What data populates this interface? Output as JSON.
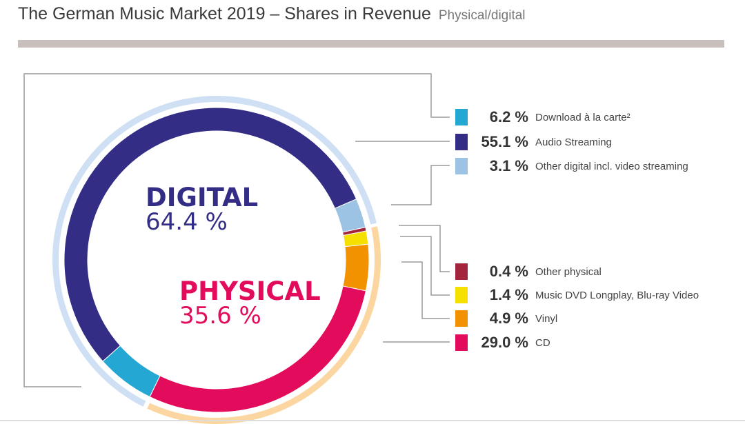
{
  "chart_data": {
    "type": "pie",
    "variant": "donut",
    "title": "The German Music Market 2019 – Shares in Revenue",
    "subtitle": "Physical/digital",
    "groups": [
      {
        "name": "DIGITAL",
        "value_label": "64.4 %",
        "value": 64.4,
        "color": "#332d85",
        "ring_color": "#cfe0f4"
      },
      {
        "name": "PHYSICAL",
        "value_label": "35.6 %",
        "value": 35.6,
        "color": "#e30b5c",
        "ring_color": "#fbd6a0"
      }
    ],
    "slices": [
      {
        "label": "Download à la carte²",
        "value": 6.2,
        "value_label": "6.2 %",
        "group": "DIGITAL",
        "color": "#25a7d3"
      },
      {
        "label": "Audio Streaming",
        "value": 55.1,
        "value_label": "55.1 %",
        "group": "DIGITAL",
        "color": "#332d85"
      },
      {
        "label": "Other digital incl. video streaming",
        "value": 3.1,
        "value_label": "3.1 %",
        "group": "DIGITAL",
        "color": "#9cc3e4"
      },
      {
        "label": "Other physical",
        "value": 0.4,
        "value_label": "0.4 %",
        "group": "PHYSICAL",
        "color": "#a3243d"
      },
      {
        "label": "Music DVD Longplay, Blu-ray Video",
        "value": 1.4,
        "value_label": "1.4 %",
        "group": "PHYSICAL",
        "color": "#f5e000"
      },
      {
        "label": "Vinyl",
        "value": 4.9,
        "value_label": "4.9 %",
        "group": "PHYSICAL",
        "color": "#f39200"
      },
      {
        "label": "CD",
        "value": 29.0,
        "value_label": "29.0 %",
        "group": "PHYSICAL",
        "color": "#e30b5c"
      }
    ],
    "legend_position": "right"
  }
}
